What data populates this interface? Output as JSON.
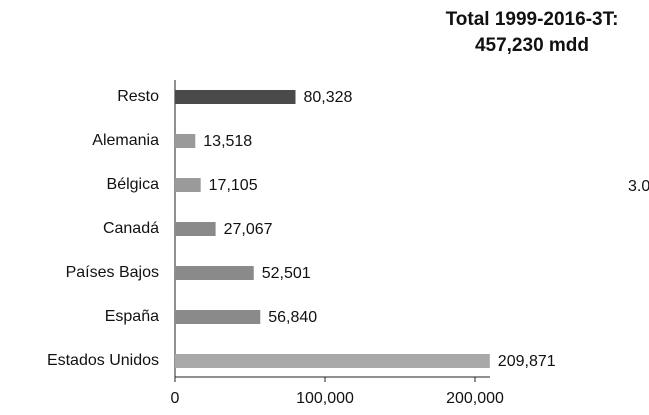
{
  "chart_data": {
    "type": "barh",
    "title": "Total 1999-2016-3T:",
    "subtitle": "457,230 mdd",
    "annotations": [
      "3.0"
    ],
    "categories": [
      "Resto",
      "Alemania",
      "Bélgica",
      "Canadá",
      "Países Bajos",
      "España",
      "Estados Unidos"
    ],
    "values": [
      80328,
      13518,
      17105,
      27067,
      52501,
      56840,
      209871
    ],
    "value_labels": [
      "80,328",
      "13,518",
      "17,105",
      "27,067",
      "52,501",
      "56,840",
      "209,871"
    ],
    "colors": [
      "#4a4a4a",
      "#9a9a9a",
      "#9a9a9a",
      "#8a8a8a",
      "#8a8a8a",
      "#8a8a8a",
      "#a8a8a8"
    ],
    "xlim": [
      0,
      210000
    ],
    "xticks": [
      0,
      {
        "value": 100000,
        "label": "100,000"
      },
      {
        "value": 200000,
        "label": "200,000"
      }
    ]
  }
}
